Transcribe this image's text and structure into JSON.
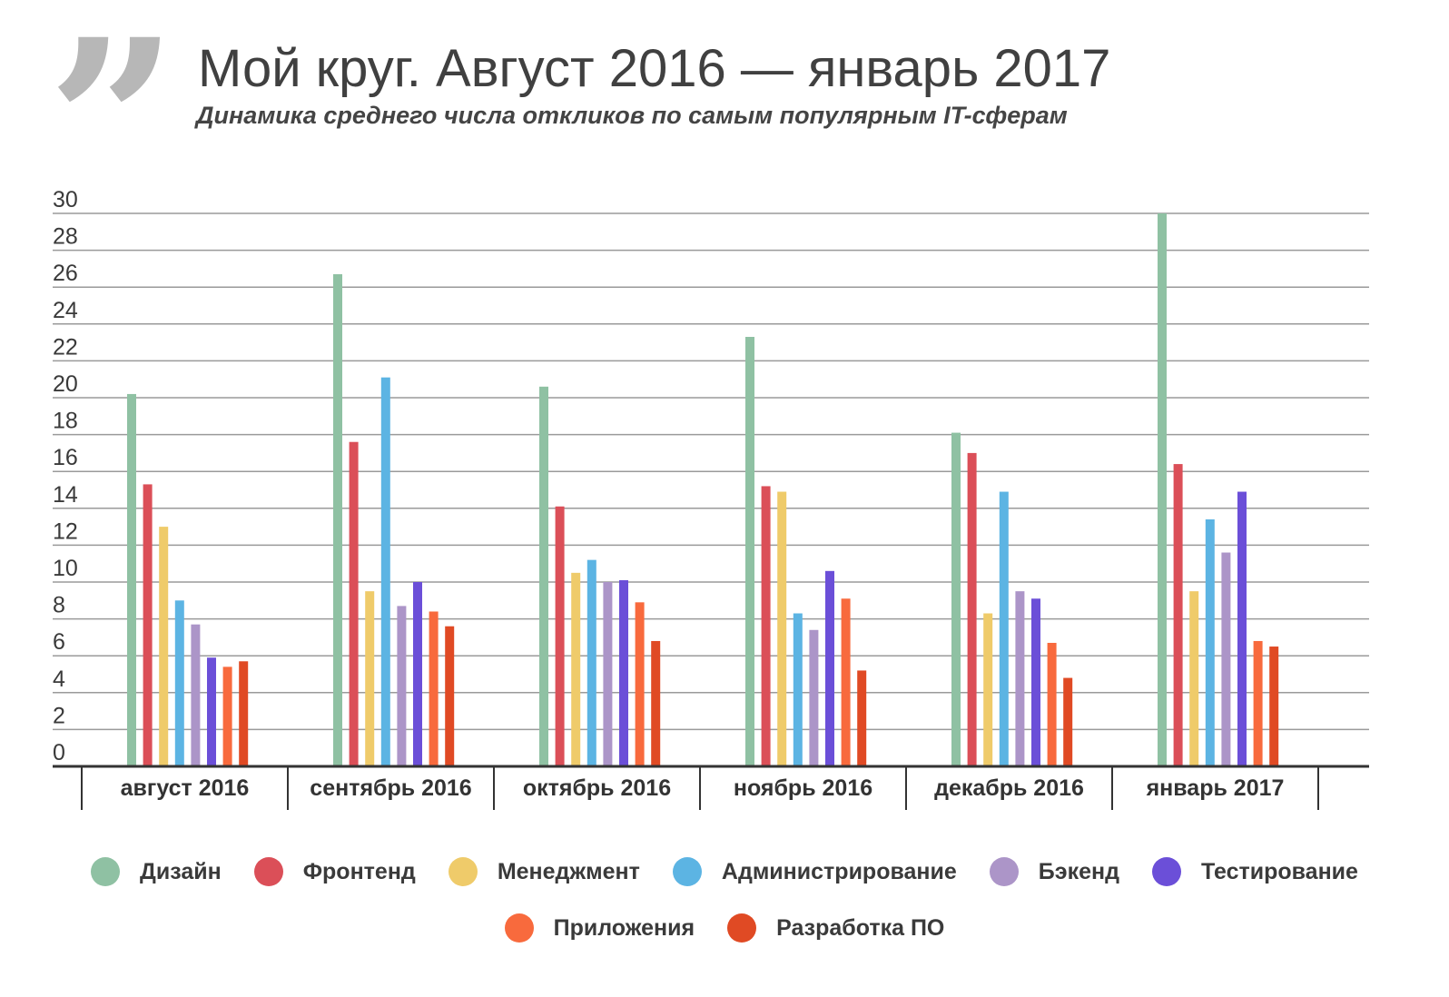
{
  "header": {
    "quote_glyph": "”",
    "title": "Мой круг. Август 2016 — январь 2017",
    "subtitle": "Динамика среднего числа откликов по самым популярным IT-сферам"
  },
  "chart_data": {
    "type": "bar",
    "title": "Мой круг. Август 2016 — январь 2017",
    "subtitle": "Динамика среднего числа откликов по самым популярным IT-сферам",
    "xlabel": "",
    "ylabel": "",
    "ylim": [
      0,
      30
    ],
    "yticks": [
      0,
      2,
      4,
      6,
      8,
      10,
      12,
      14,
      16,
      18,
      20,
      22,
      24,
      26,
      28,
      30
    ],
    "grid": true,
    "legend": "bottom",
    "categories": [
      "август 2016",
      "сентябрь 2016",
      "октябрь 2016",
      "ноябрь 2016",
      "декабрь 2016",
      "январь 2017"
    ],
    "series": [
      {
        "name": "Дизайн",
        "color": "#8fc1a3",
        "values": [
          20.2,
          26.7,
          20.6,
          23.3,
          18.1,
          30.0
        ]
      },
      {
        "name": "Фронтенд",
        "color": "#db4f58",
        "values": [
          15.3,
          17.6,
          14.1,
          15.2,
          17.0,
          16.4
        ]
      },
      {
        "name": "Менеджмент",
        "color": "#efcb6a",
        "values": [
          13.0,
          9.5,
          10.5,
          14.9,
          8.3,
          9.5
        ]
      },
      {
        "name": "Администрирование",
        "color": "#5cb4e3",
        "values": [
          9.0,
          21.1,
          11.2,
          8.3,
          14.9,
          13.4
        ]
      },
      {
        "name": "Бэкенд",
        "color": "#ac95c8",
        "values": [
          7.7,
          8.7,
          10.0,
          7.4,
          9.5,
          11.6
        ]
      },
      {
        "name": "Тестирование",
        "color": "#6b4fd8",
        "values": [
          5.9,
          10.0,
          10.1,
          10.6,
          9.1,
          14.9
        ]
      },
      {
        "name": "Приложения",
        "color": "#f86a3d",
        "values": [
          5.4,
          8.4,
          8.9,
          9.1,
          6.7,
          6.8
        ]
      },
      {
        "name": "Разработка ПО",
        "color": "#e04a24",
        "values": [
          5.7,
          7.6,
          6.8,
          5.2,
          4.8,
          6.5
        ]
      }
    ]
  }
}
